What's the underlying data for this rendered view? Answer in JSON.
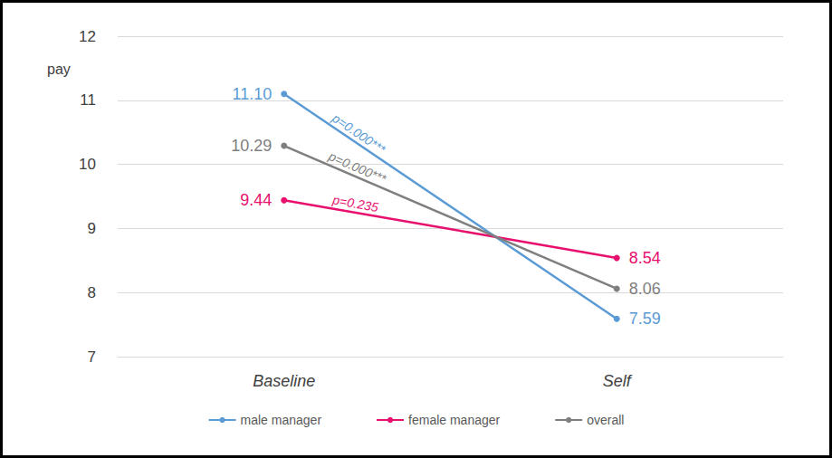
{
  "chart_data": {
    "type": "line",
    "categories": [
      "Baseline",
      "Self"
    ],
    "y_label": "pay",
    "ylim": [
      7,
      12
    ],
    "yticks": [
      7,
      8,
      9,
      10,
      11,
      12
    ],
    "grid": true,
    "legend": "bottom",
    "data_labels": true,
    "marker": "circle",
    "series": [
      {
        "name": "male manager",
        "color": "#5b9bd5",
        "values": [
          11.1,
          7.59
        ],
        "value_labels": [
          "11.10",
          "7.59"
        ],
        "annotation": "p=0.000***"
      },
      {
        "name": "female manager",
        "color": "#e8106e",
        "values": [
          9.44,
          8.54
        ],
        "value_labels": [
          "9.44",
          "8.54"
        ],
        "annotation": "p=0.235"
      },
      {
        "name": "overall",
        "color": "#7f7f7f",
        "values": [
          10.29,
          8.06
        ],
        "value_labels": [
          "10.29",
          "8.06"
        ],
        "annotation": "p=0.000***"
      }
    ]
  }
}
